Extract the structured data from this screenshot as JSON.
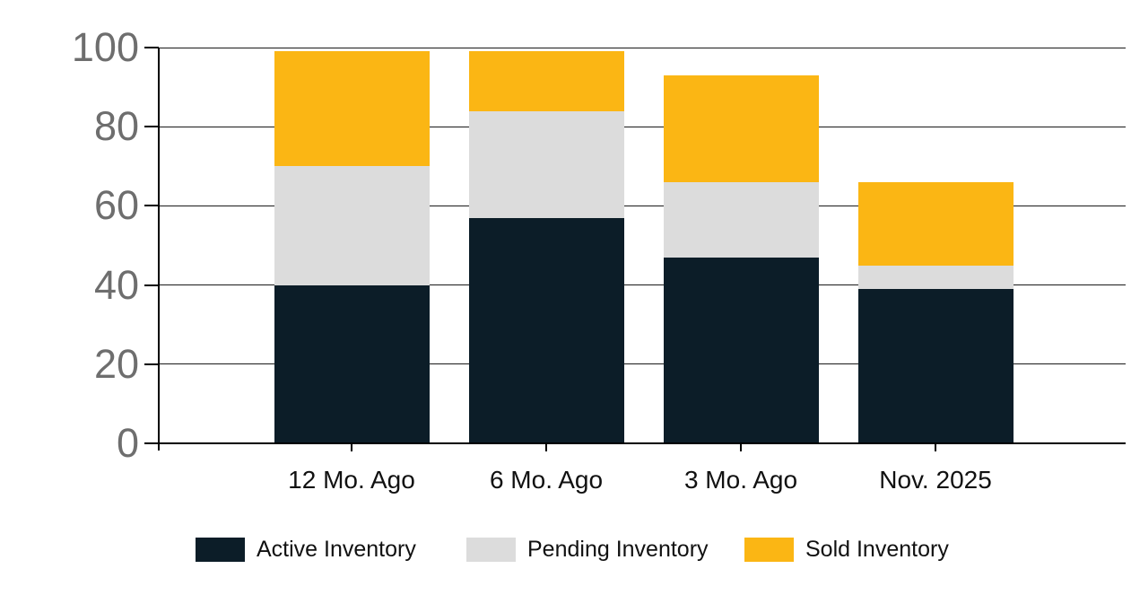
{
  "chart_data": {
    "type": "bar",
    "stacked": true,
    "title": "",
    "xlabel": "",
    "ylabel": "",
    "categories": [
      "12 Mo. Ago",
      "6 Mo. Ago",
      "3 Mo. Ago",
      "Nov. 2025"
    ],
    "series": [
      {
        "name": "Active Inventory",
        "color": "#0C1D28",
        "values": [
          40,
          57,
          47,
          39
        ]
      },
      {
        "name": "Pending Inventory",
        "color": "#DCDCDC",
        "values": [
          30,
          27,
          19,
          6
        ]
      },
      {
        "name": "Sold Inventory",
        "color": "#FBB614",
        "values": [
          29,
          15,
          27,
          21
        ]
      }
    ],
    "stack_totals": [
      99,
      99,
      93,
      66
    ],
    "ylim": [
      0,
      100
    ],
    "yticks": [
      0,
      20,
      40,
      60,
      80,
      100
    ],
    "grid": true,
    "gridline_color": "#1A1A1A",
    "axis_color": "#000000",
    "ytick_label_color": "#6E6E6E",
    "xtick_label_color": "#111111",
    "legend_position": "bottom",
    "background_color": "#FFFFFF"
  }
}
